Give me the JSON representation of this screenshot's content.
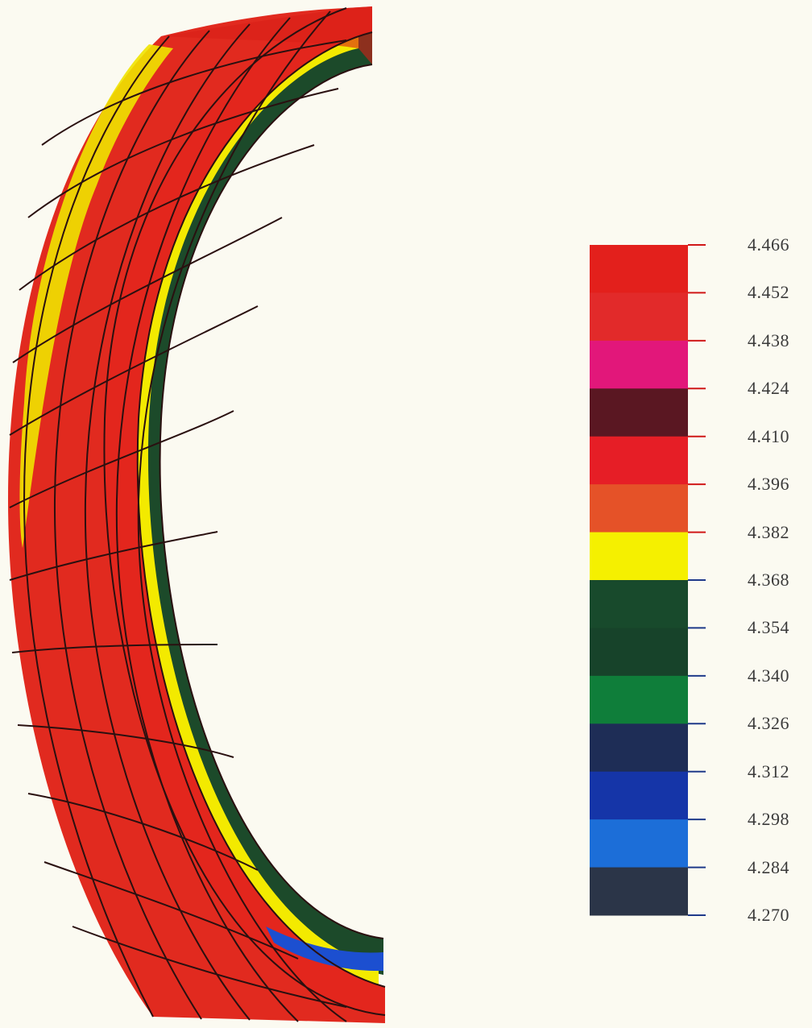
{
  "legend": {
    "labels": [
      "4.466",
      "4.452",
      "4.438",
      "4.424",
      "4.410",
      "4.396",
      "4.382",
      "4.368",
      "4.354",
      "4.340",
      "4.326",
      "4.312",
      "4.298",
      "4.284",
      "4.270"
    ],
    "bands": [
      {
        "color": "#e3201c",
        "name": "red"
      },
      {
        "color": "#e22a2a",
        "name": "red"
      },
      {
        "color": "#e2177a",
        "name": "magenta"
      },
      {
        "color": "#5a1722",
        "name": "dark-maroon"
      },
      {
        "color": "#e61e26",
        "name": "red"
      },
      {
        "color": "#e55228",
        "name": "orange-red"
      },
      {
        "color": "#f5f000",
        "name": "yellow"
      },
      {
        "color": "#184a2c",
        "name": "dark-green"
      },
      {
        "color": "#17432a",
        "name": "dark-green"
      },
      {
        "color": "#0f7e3a",
        "name": "green"
      },
      {
        "color": "#1e2d56",
        "name": "navy"
      },
      {
        "color": "#1535a8",
        "name": "blue"
      },
      {
        "color": "#1c6ed8",
        "name": "light-blue"
      },
      {
        "color": "#2b3548",
        "name": "slate"
      }
    ],
    "tick_color_warm": "#d01818",
    "tick_color_cool": "#1f3a8a"
  },
  "model": {
    "outer_color": "#e3261d",
    "stripe_color": "#f3ea00",
    "inner_color": "#1c4a2a",
    "low_color": "#1c4fd0",
    "mesh_color": "#2a1010"
  }
}
